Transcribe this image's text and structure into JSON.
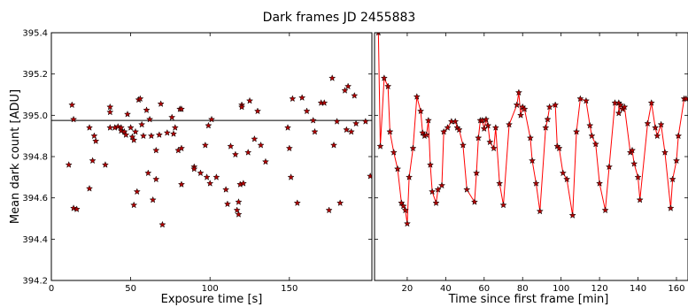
{
  "chart_data": {
    "title": "Dark frames JD 2455883",
    "ylabel": "Mean dark count [ADU]",
    "ylim": [
      394.2,
      395.4
    ],
    "yticks": [
      "394.2",
      "394.4",
      "394.6",
      "394.8",
      "395.0",
      "395.2",
      "395.4"
    ],
    "yticks_values": [
      394.2,
      394.4,
      394.6,
      394.8,
      395.0,
      395.2,
      395.4
    ],
    "marker": "star",
    "marker_color": "#b00000",
    "line_color": "#ff0000",
    "panels": [
      {
        "type": "scatter",
        "xlabel": "Exposure time [s]",
        "xlim": [
          0,
          202
        ],
        "xticks_values": [
          0,
          50,
          100,
          150
        ],
        "xticks": [
          "0",
          "50",
          "100",
          "150"
        ],
        "hline": 394.975,
        "points": [
          [
            11,
            394.76
          ],
          [
            13,
            395.05
          ],
          [
            14,
            394.98
          ],
          [
            14,
            394.55
          ],
          [
            16,
            394.545
          ],
          [
            24,
            394.94
          ],
          [
            24,
            394.645
          ],
          [
            26,
            394.78
          ],
          [
            27,
            394.9
          ],
          [
            28,
            394.875
          ],
          [
            34,
            394.76
          ],
          [
            37,
            395.04
          ],
          [
            37,
            395.015
          ],
          [
            37,
            394.94
          ],
          [
            40,
            394.94
          ],
          [
            42,
            394.945
          ],
          [
            44,
            394.925
          ],
          [
            44,
            394.94
          ],
          [
            46,
            394.92
          ],
          [
            47,
            394.905
          ],
          [
            48,
            395.005
          ],
          [
            50,
            394.94
          ],
          [
            51,
            394.895
          ],
          [
            52,
            394.88
          ],
          [
            53,
            394.92
          ],
          [
            52,
            394.565
          ],
          [
            54,
            394.63
          ],
          [
            55,
            395.075
          ],
          [
            56,
            395.08
          ],
          [
            57,
            394.955
          ],
          [
            58,
            394.9
          ],
          [
            60,
            395.025
          ],
          [
            61,
            394.72
          ],
          [
            62,
            394.98
          ],
          [
            63,
            394.9
          ],
          [
            64,
            394.59
          ],
          [
            66,
            394.83
          ],
          [
            66,
            394.69
          ],
          [
            68,
            394.905
          ],
          [
            69,
            395.055
          ],
          [
            70,
            394.47
          ],
          [
            73,
            394.915
          ],
          [
            76,
            394.99
          ],
          [
            77,
            394.91
          ],
          [
            78,
            394.94
          ],
          [
            80,
            394.83
          ],
          [
            81,
            395.03
          ],
          [
            82,
            394.84
          ],
          [
            82,
            395.03
          ],
          [
            82,
            394.665
          ],
          [
            90,
            394.75
          ],
          [
            90,
            394.74
          ],
          [
            94,
            394.72
          ],
          [
            97,
            394.855
          ],
          [
            98,
            394.7
          ],
          [
            99,
            394.95
          ],
          [
            100,
            394.67
          ],
          [
            101,
            394.98
          ],
          [
            104,
            394.7
          ],
          [
            110,
            394.64
          ],
          [
            111,
            394.57
          ],
          [
            113,
            394.85
          ],
          [
            116,
            394.81
          ],
          [
            117,
            394.54
          ],
          [
            118,
            394.52
          ],
          [
            118,
            394.58
          ],
          [
            119,
            394.665
          ],
          [
            120,
            395.05
          ],
          [
            120,
            395.04
          ],
          [
            121,
            394.67
          ],
          [
            124,
            394.82
          ],
          [
            125,
            395.07
          ],
          [
            128,
            394.885
          ],
          [
            130,
            395.02
          ],
          [
            132,
            394.855
          ],
          [
            135,
            394.775
          ],
          [
            149,
            394.94
          ],
          [
            150,
            394.84
          ],
          [
            151,
            394.7
          ],
          [
            152,
            395.08
          ],
          [
            155,
            394.575
          ],
          [
            158,
            395.085
          ],
          [
            161,
            395.02
          ],
          [
            165,
            394.975
          ],
          [
            166,
            394.92
          ],
          [
            170,
            395.06
          ],
          [
            172,
            395.06
          ],
          [
            175,
            394.54
          ],
          [
            177,
            395.18
          ],
          [
            178,
            394.855
          ],
          [
            180,
            394.97
          ],
          [
            182,
            394.575
          ],
          [
            185,
            395.12
          ],
          [
            186,
            394.93
          ],
          [
            187,
            395.14
          ],
          [
            189,
            394.92
          ],
          [
            191,
            395.095
          ],
          [
            192,
            394.96
          ],
          [
            198,
            394.97
          ],
          [
            201,
            394.705
          ]
        ]
      },
      {
        "type": "line",
        "xlabel": "Time since first frame [min]",
        "xlim": [
          3,
          166
        ],
        "xticks_values": [
          20,
          40,
          60,
          80,
          100,
          120,
          140,
          160
        ],
        "xticks": [
          "20",
          "40",
          "60",
          "80",
          "100",
          "120",
          "140",
          "160"
        ],
        "points": [
          [
            5,
            395.4
          ],
          [
            6,
            394.85
          ],
          [
            8,
            395.18
          ],
          [
            10,
            395.14
          ],
          [
            11,
            394.92
          ],
          [
            13,
            394.82
          ],
          [
            15,
            394.74
          ],
          [
            17,
            394.575
          ],
          [
            18,
            394.56
          ],
          [
            19,
            394.54
          ],
          [
            20,
            394.475
          ],
          [
            21,
            394.7
          ],
          [
            23,
            394.84
          ],
          [
            25,
            395.09
          ],
          [
            27,
            395.02
          ],
          [
            28,
            394.915
          ],
          [
            29,
            394.9
          ],
          [
            30,
            394.905
          ],
          [
            31,
            394.975
          ],
          [
            32,
            394.76
          ],
          [
            33,
            394.63
          ],
          [
            35,
            394.575
          ],
          [
            36,
            394.64
          ],
          [
            38,
            394.66
          ],
          [
            39,
            394.92
          ],
          [
            41,
            394.94
          ],
          [
            43,
            394.97
          ],
          [
            45,
            394.97
          ],
          [
            46,
            394.94
          ],
          [
            47,
            394.93
          ],
          [
            49,
            394.855
          ],
          [
            51,
            394.64
          ],
          [
            55,
            394.58
          ],
          [
            56,
            394.72
          ],
          [
            57,
            394.89
          ],
          [
            58,
            394.975
          ],
          [
            59,
            394.975
          ],
          [
            60,
            394.935
          ],
          [
            61,
            394.98
          ],
          [
            62,
            394.95
          ],
          [
            63,
            394.87
          ],
          [
            65,
            394.84
          ],
          [
            66,
            394.94
          ],
          [
            68,
            394.67
          ],
          [
            70,
            394.565
          ],
          [
            73,
            394.955
          ],
          [
            77,
            395.05
          ],
          [
            78,
            395.11
          ],
          [
            79,
            395.0
          ],
          [
            80,
            395.04
          ],
          [
            81,
            395.03
          ],
          [
            84,
            394.89
          ],
          [
            85,
            394.78
          ],
          [
            87,
            394.67
          ],
          [
            89,
            394.535
          ],
          [
            92,
            394.94
          ],
          [
            93,
            394.98
          ],
          [
            94,
            395.04
          ],
          [
            97,
            395.05
          ],
          [
            98,
            394.85
          ],
          [
            99,
            394.84
          ],
          [
            101,
            394.72
          ],
          [
            103,
            394.69
          ],
          [
            106,
            394.515
          ],
          [
            108,
            394.92
          ],
          [
            110,
            395.08
          ],
          [
            113,
            395.07
          ],
          [
            115,
            394.95
          ],
          [
            116,
            394.9
          ],
          [
            118,
            394.86
          ],
          [
            120,
            394.67
          ],
          [
            123,
            394.54
          ],
          [
            125,
            394.75
          ],
          [
            128,
            395.06
          ],
          [
            130,
            395.06
          ],
          [
            130,
            395.01
          ],
          [
            131,
            395.05
          ],
          [
            132,
            395.03
          ],
          [
            133,
            395.04
          ],
          [
            136,
            394.82
          ],
          [
            137,
            394.83
          ],
          [
            138,
            394.765
          ],
          [
            140,
            394.7
          ],
          [
            141,
            394.59
          ],
          [
            145,
            394.96
          ],
          [
            147,
            395.06
          ],
          [
            149,
            394.94
          ],
          [
            150,
            394.9
          ],
          [
            152,
            394.955
          ],
          [
            154,
            394.82
          ],
          [
            157,
            394.55
          ],
          [
            158,
            394.69
          ],
          [
            160,
            394.78
          ],
          [
            161,
            394.9
          ],
          [
            164,
            395.08
          ],
          [
            165,
            395.08
          ]
        ]
      }
    ]
  }
}
